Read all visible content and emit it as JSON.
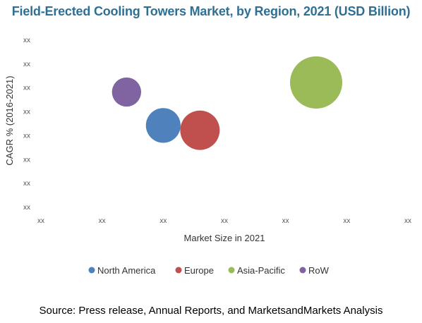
{
  "chart_data": {
    "type": "bubble",
    "title": "Field-Erected Cooling Towers Market, by Region, 2021 (USD Billion)",
    "xlabel": "Market Size in 2021",
    "ylabel": "CAGR % (2016-2021)",
    "x_tick_labels": [
      "xx",
      "xx",
      "xx",
      "xx",
      "xx",
      "xx",
      "xx"
    ],
    "y_tick_labels": [
      "xx",
      "xx",
      "xx",
      "xx",
      "xx",
      "xx",
      "xx",
      "xx"
    ],
    "xlim": [
      0,
      6
    ],
    "ylim": [
      0,
      7
    ],
    "grid": false,
    "legend_position": "bottom",
    "series": [
      {
        "name": "North America",
        "x": 2.0,
        "y": 3.4,
        "size": 3.4,
        "color": "#4f81bd"
      },
      {
        "name": "Europe",
        "x": 2.6,
        "y": 3.2,
        "size": 4.4,
        "color": "#c0504d"
      },
      {
        "name": "Asia-Pacific",
        "x": 4.5,
        "y": 5.2,
        "size": 7.7,
        "color": "#9bbb59"
      },
      {
        "name": "RoW",
        "x": 1.4,
        "y": 4.8,
        "size": 2.4,
        "color": "#8064a2"
      }
    ]
  },
  "source": "Source: Press release, Annual Reports, and MarketsandMarkets Analysis"
}
